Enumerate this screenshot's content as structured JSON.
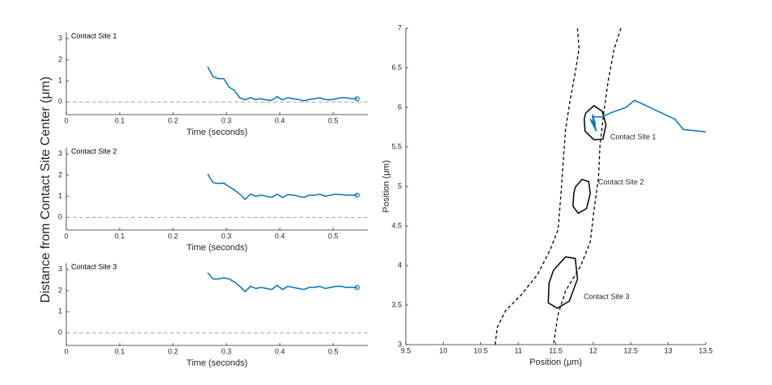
{
  "figure": {
    "ylabel": "Distance from Contact Site Center (μm)"
  },
  "chart_data": [
    {
      "type": "line",
      "title": "Contact Site 1",
      "xlabel": "Time (seconds)",
      "color": "#0072bd",
      "x": [
        0.265,
        0.275,
        0.285,
        0.295,
        0.305,
        0.315,
        0.325,
        0.335,
        0.345,
        0.355,
        0.365,
        0.375,
        0.385,
        0.395,
        0.405,
        0.415,
        0.425,
        0.435,
        0.445,
        0.455,
        0.465,
        0.475,
        0.485,
        0.495,
        0.505,
        0.515,
        0.525,
        0.535,
        0.545
      ],
      "values": [
        1.67,
        1.2,
        1.1,
        1.1,
        0.7,
        0.55,
        0.2,
        0.1,
        0.2,
        0.12,
        0.15,
        0.1,
        0.08,
        0.25,
        0.1,
        0.2,
        0.15,
        0.12,
        0.05,
        0.12,
        0.15,
        0.2,
        0.12,
        0.1,
        0.15,
        0.2,
        0.2,
        0.15,
        0.15
      ],
      "xlim": [
        0,
        0.565
      ],
      "ylim": [
        -0.6,
        3.3
      ],
      "xticks": [
        0,
        0.1,
        0.2,
        0.3,
        0.4,
        0.5
      ],
      "yticks": [
        0,
        1,
        2,
        3
      ],
      "reference_line": 0
    },
    {
      "type": "line",
      "title": "Contact Site 2",
      "xlabel": "Time (seconds)",
      "color": "#0072bd",
      "x": [
        0.265,
        0.275,
        0.285,
        0.295,
        0.305,
        0.315,
        0.325,
        0.335,
        0.345,
        0.355,
        0.365,
        0.375,
        0.385,
        0.395,
        0.405,
        0.415,
        0.425,
        0.435,
        0.445,
        0.455,
        0.465,
        0.475,
        0.485,
        0.495,
        0.505,
        0.515,
        0.525,
        0.535,
        0.545
      ],
      "values": [
        2.05,
        1.65,
        1.6,
        1.62,
        1.45,
        1.3,
        1.1,
        0.85,
        1.1,
        1.0,
        1.05,
        1.0,
        0.95,
        1.1,
        0.95,
        1.08,
        1.05,
        1.0,
        0.95,
        1.05,
        1.05,
        1.1,
        1.0,
        1.05,
        1.1,
        1.08,
        1.05,
        1.05,
        1.05
      ],
      "xlim": [
        0,
        0.565
      ],
      "ylim": [
        -0.6,
        3.3
      ],
      "xticks": [
        0,
        0.1,
        0.2,
        0.3,
        0.4,
        0.5
      ],
      "yticks": [
        0,
        1,
        2,
        3
      ],
      "reference_line": 0
    },
    {
      "type": "line",
      "title": "Contact Site 3",
      "xlabel": "Time (seconds)",
      "color": "#0072bd",
      "x": [
        0.265,
        0.275,
        0.285,
        0.295,
        0.305,
        0.315,
        0.325,
        0.335,
        0.345,
        0.355,
        0.365,
        0.375,
        0.385,
        0.395,
        0.405,
        0.415,
        0.425,
        0.435,
        0.445,
        0.455,
        0.465,
        0.475,
        0.485,
        0.495,
        0.505,
        0.515,
        0.525,
        0.535,
        0.545
      ],
      "values": [
        2.85,
        2.55,
        2.55,
        2.6,
        2.55,
        2.4,
        2.2,
        1.95,
        2.2,
        2.1,
        2.15,
        2.1,
        2.05,
        2.25,
        2.05,
        2.2,
        2.15,
        2.1,
        2.05,
        2.15,
        2.15,
        2.2,
        2.1,
        2.15,
        2.2,
        2.2,
        2.15,
        2.15,
        2.15
      ],
      "xlim": [
        0,
        0.565
      ],
      "ylim": [
        -0.6,
        3.3
      ],
      "xticks": [
        0,
        0.1,
        0.2,
        0.3,
        0.4,
        0.5
      ],
      "yticks": [
        0,
        1,
        2,
        3
      ],
      "reference_line": 0
    },
    {
      "type": "xy",
      "xlabel": "Position (μm)",
      "ylabel": "Position (μm)",
      "annotations": [
        "Contact Site 1",
        "Contact Site 2",
        "Contact Site 3"
      ],
      "xlim": [
        9.5,
        13.5
      ],
      "ylim": [
        3,
        7
      ],
      "xticks": [
        9.5,
        10,
        10.5,
        11,
        11.5,
        12,
        12.5,
        13,
        13.5
      ],
      "yticks": [
        3,
        3.5,
        4,
        4.5,
        5,
        5.5,
        6,
        6.5,
        7
      ],
      "series": [
        {
          "color": "#000000",
          "dash": true,
          "x": [
            11.79,
            11.81,
            11.76,
            11.69,
            11.63,
            11.6,
            11.57,
            11.53,
            11.42,
            11.26,
            11.04,
            10.83,
            10.72,
            10.69
          ],
          "y": [
            7,
            6.74,
            6.44,
            6.08,
            5.72,
            5.32,
            4.91,
            4.45,
            4.19,
            3.89,
            3.63,
            3.43,
            3.22,
            3.0
          ]
        },
        {
          "color": "#000000",
          "dash": true,
          "x": [
            12.37,
            12.28,
            12.2,
            12.14,
            12.09,
            12.07,
            12.01,
            11.96,
            11.83,
            11.63,
            11.53,
            11.47
          ],
          "y": [
            7,
            6.74,
            6.34,
            5.93,
            5.52,
            5.11,
            4.7,
            4.3,
            3.99,
            3.68,
            3.38,
            3.0
          ]
        },
        {
          "color": "#000000",
          "dash": false,
          "x": [
            11.9,
            12.01,
            12.12,
            12.17,
            12.13,
            12.01,
            11.89,
            11.88,
            11.9
          ],
          "y": [
            5.93,
            6.02,
            5.95,
            5.78,
            5.6,
            5.59,
            5.7,
            5.85,
            5.93
          ]
        },
        {
          "color": "#000000",
          "dash": false,
          "x": [
            11.76,
            11.85,
            11.94,
            11.96,
            11.91,
            11.8,
            11.73,
            11.74,
            11.76
          ],
          "y": [
            4.99,
            5.09,
            5.06,
            4.91,
            4.72,
            4.66,
            4.75,
            4.91,
            4.99
          ]
        },
        {
          "color": "#000000",
          "dash": false,
          "x": [
            11.47,
            11.63,
            11.76,
            11.79,
            11.68,
            11.52,
            11.4,
            11.41,
            11.47
          ],
          "y": [
            3.94,
            4.11,
            4.09,
            3.83,
            3.55,
            3.46,
            3.53,
            3.78,
            3.94
          ]
        },
        {
          "color": "#0072bd",
          "dash": false,
          "x": [
            13.5,
            13.2,
            13.09,
            12.55,
            12.44,
            12.23,
            12.12,
            11.99,
            12.04,
            11.96,
            12.03,
            11.99,
            12.02
          ],
          "y": [
            5.69,
            5.72,
            5.85,
            6.09,
            6.0,
            5.93,
            5.88,
            5.88,
            5.7,
            5.85,
            5.78,
            5.91,
            5.75
          ]
        }
      ]
    }
  ]
}
